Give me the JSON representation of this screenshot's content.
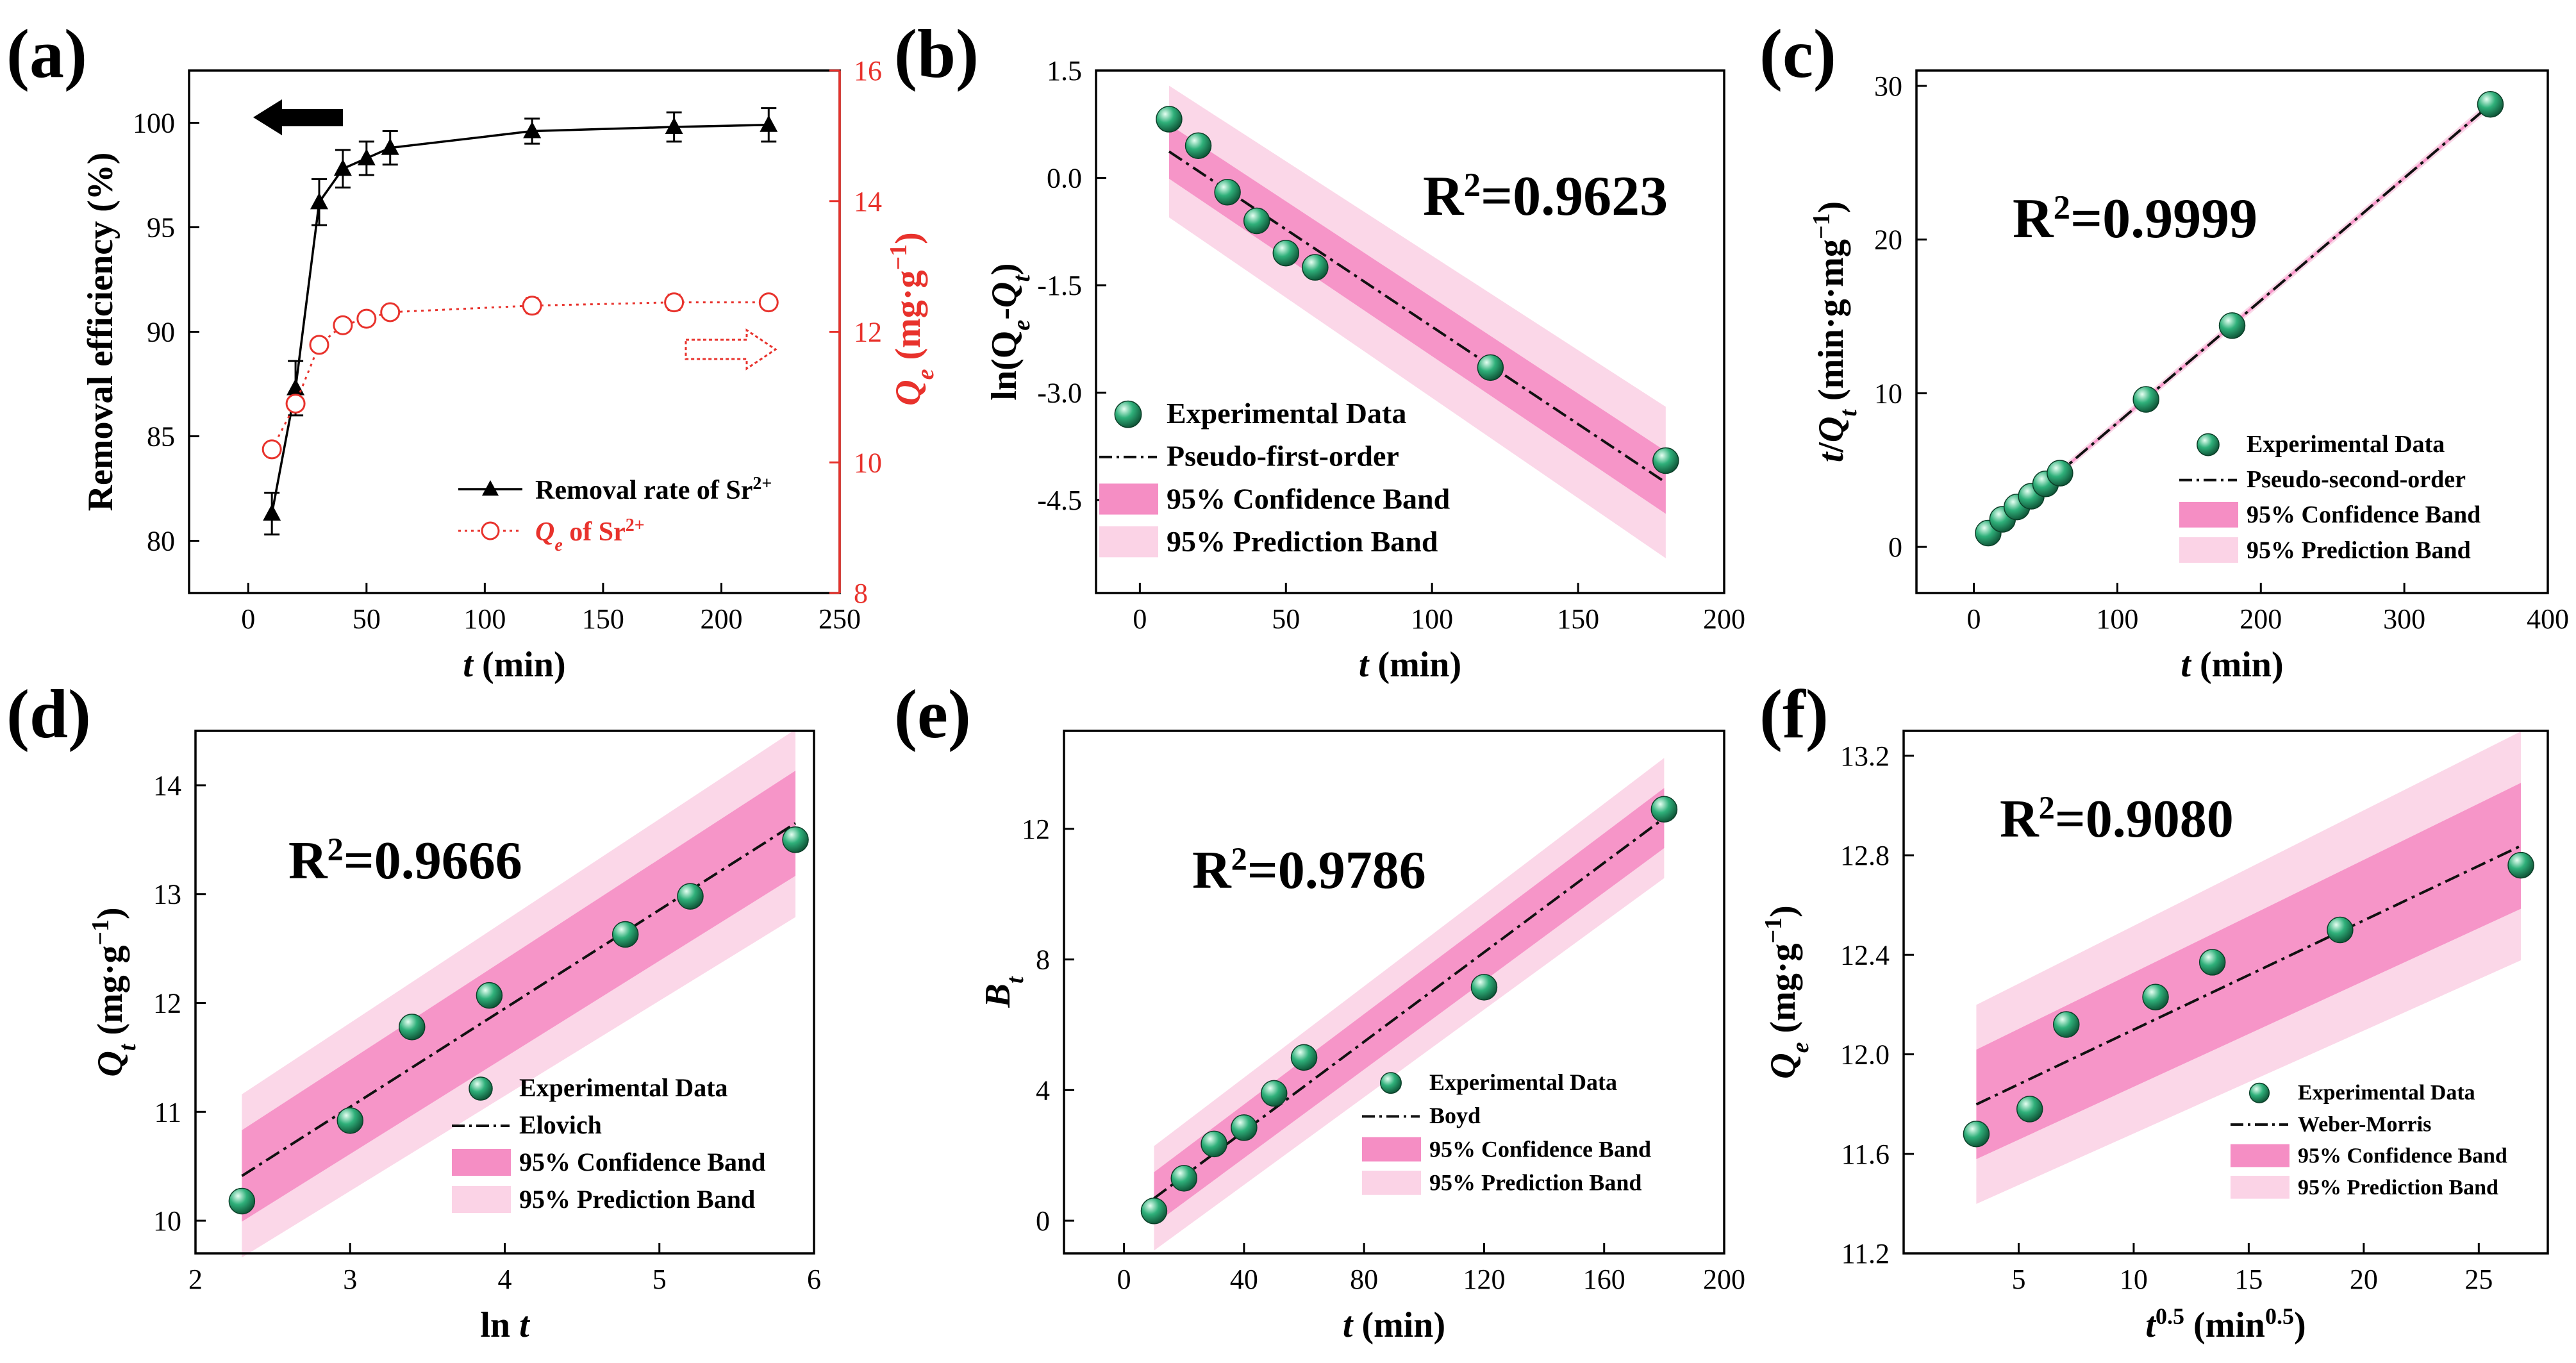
{
  "chart_data": [
    {
      "id": "a",
      "panel_label": "(a)",
      "type": "line",
      "xlabel_main": "t",
      "xlabel_unit": " (min)",
      "ylabel": "Removal efficiency (%)",
      "y2label_main": "Q",
      "y2label_sub": "e",
      "y2label_unit": " (mg·g",
      "y2label_sup": "−1",
      "y2label_close": ")",
      "xlim": [
        -25,
        250
      ],
      "xticks": [
        0,
        50,
        100,
        150,
        200,
        250
      ],
      "ylim": [
        77.5,
        102.5
      ],
      "yticks": [
        80,
        85,
        90,
        95,
        100
      ],
      "y2lim": [
        8,
        16
      ],
      "y2ticks": [
        8,
        10,
        12,
        14,
        16
      ],
      "series": [
        {
          "name": "Removal rate of Sr2+",
          "axis": "left",
          "color": "#000000",
          "x": [
            10,
            20,
            30,
            40,
            50,
            60,
            120,
            180,
            220
          ],
          "y": [
            81.3,
            87.3,
            96.2,
            97.8,
            98.3,
            98.8,
            99.6,
            99.8,
            99.9
          ],
          "err": [
            1.0,
            1.3,
            1.1,
            0.9,
            0.8,
            0.8,
            0.6,
            0.7,
            0.8
          ]
        },
        {
          "name": "Qe of Sr2+",
          "axis": "right",
          "color": "#e8322c",
          "x": [
            10,
            20,
            30,
            40,
            50,
            60,
            120,
            180,
            220
          ],
          "y": [
            10.2,
            10.9,
            11.8,
            12.1,
            12.2,
            12.3,
            12.4,
            12.45,
            12.45
          ],
          "err": [
            0.08,
            0.1,
            0.1,
            0.1,
            0.08,
            0.08,
            0.12,
            0.12,
            0.1
          ]
        }
      ],
      "legend": [
        {
          "text": "Removal rate of Sr",
          "sup": "2+"
        },
        {
          "text_italic": "Q",
          "sub": "e",
          "text": " of Sr",
          "sup": "2+"
        }
      ]
    },
    {
      "id": "b",
      "panel_label": "(b)",
      "type": "scatter",
      "xlabel_main": "t",
      "xlabel_unit": " (min)",
      "ylabel_text": "ln(Q",
      "xlim": [
        -15,
        200
      ],
      "xticks": [
        0,
        50,
        100,
        150,
        200
      ],
      "ylim": [
        -5.8,
        1.5
      ],
      "yticks": [
        1.5,
        0.0,
        -1.5,
        -3.0,
        -4.5
      ],
      "ytick_labels": [
        "1.5",
        "0.0",
        "-1.5",
        "-3.0",
        "-4.5"
      ],
      "points": {
        "x": [
          10,
          20,
          30,
          40,
          50,
          60,
          120,
          180
        ],
        "y": [
          0.82,
          0.45,
          -0.2,
          -0.6,
          -1.05,
          -1.25,
          -2.65,
          -3.95
        ]
      },
      "fit": {
        "slope": -0.0272,
        "intercept": 0.64,
        "conf": 0.38,
        "pred": 0.92,
        "x0": 10,
        "x1": 180
      },
      "r2_label": "R",
      "r2_value": "=0.9623",
      "legend": [
        "Experimental Data",
        "Pseudo-first-order",
        "95% Confidence Band",
        "95% Prediction Band"
      ]
    },
    {
      "id": "c",
      "panel_label": "(c)",
      "type": "scatter",
      "xlabel_main": "t",
      "xlabel_unit": " (min)",
      "xlim": [
        -40,
        400
      ],
      "xticks": [
        0,
        100,
        200,
        300,
        400
      ],
      "ylim": [
        -3,
        31
      ],
      "yticks": [
        0,
        10,
        20,
        30
      ],
      "points": {
        "x": [
          10,
          20,
          30,
          40,
          50,
          60,
          120,
          180,
          360
        ],
        "y": [
          0.9,
          1.8,
          2.6,
          3.3,
          4.1,
          4.8,
          9.6,
          14.4,
          28.8
        ]
      },
      "fit": {
        "slope": 0.0797,
        "intercept": 0.1,
        "conf": 0.1,
        "pred": 0.25,
        "x0": 10,
        "x1": 360
      },
      "r2_label": "R",
      "r2_value": "=0.9999",
      "legend": [
        "Experimental Data",
        "Pseudo-second-order",
        "95% Confidence Band",
        "95% Prediction Band"
      ]
    },
    {
      "id": "d",
      "panel_label": "(d)",
      "type": "scatter",
      "xlabel_main": "ln ",
      "xlabel_it": "t",
      "xlim": [
        2,
        6
      ],
      "xticks": [
        2,
        3,
        4,
        5,
        6
      ],
      "ylim": [
        9.7,
        14.5
      ],
      "yticks": [
        10,
        11,
        12,
        13,
        14
      ],
      "points": {
        "x": [
          2.3,
          3.0,
          3.4,
          3.9,
          4.78,
          5.2,
          5.88
        ],
        "y": [
          10.18,
          10.92,
          11.78,
          12.07,
          12.63,
          12.98,
          13.5
        ]
      },
      "fit": {
        "slope": 0.905,
        "intercept": 8.33,
        "conf": 0.42,
        "pred": 0.75,
        "x0": 2.3,
        "x1": 5.88
      },
      "r2_label": "R",
      "r2_value": "=0.9666",
      "legend": [
        "Experimental Data",
        "Elovich",
        "95% Confidence Band",
        "95% Prediction Band"
      ]
    },
    {
      "id": "e",
      "panel_label": "(e)",
      "type": "scatter",
      "xlabel_main": "t",
      "xlabel_unit": " (min)",
      "xlim": [
        -20,
        200
      ],
      "xticks": [
        0,
        40,
        80,
        120,
        160,
        200
      ],
      "ylim": [
        -1,
        15
      ],
      "yticks": [
        0,
        4,
        8,
        12
      ],
      "points": {
        "x": [
          10,
          20,
          30,
          40,
          50,
          60,
          120,
          180
        ],
        "y": [
          0.3,
          1.3,
          2.35,
          2.85,
          3.9,
          5.0,
          7.15,
          12.6
        ]
      },
      "fit": {
        "slope": 0.0685,
        "intercept": 0.0,
        "conf": 0.8,
        "pred": 1.6,
        "x0": 10,
        "x1": 180
      },
      "r2_label": "R",
      "r2_value": "=0.9786",
      "legend": [
        "Experimental Data",
        "Boyd",
        "95% Confidence Band",
        "95% Prediction Band"
      ]
    },
    {
      "id": "f",
      "panel_label": "(f)",
      "type": "scatter",
      "xlabel_main": "t",
      "xlabel_sup": "0.5",
      "xlabel_unit": " (min",
      "xlabel_unit_sup": "0.5",
      "xlabel_close": ")",
      "xlim": [
        0,
        28
      ],
      "xticks": [
        5,
        10,
        15,
        20,
        25
      ],
      "ylim": [
        11.2,
        13.3
      ],
      "yticks": [
        11.2,
        11.6,
        12.0,
        12.4,
        12.8,
        13.2
      ],
      "ytick_labels": [
        "11.2",
        "11.6",
        "12.0",
        "12.4",
        "12.8",
        "13.2"
      ],
      "points": {
        "x": [
          3.16,
          5.48,
          7.07,
          10.95,
          13.42,
          18.97,
          26.83
        ],
        "y": [
          11.68,
          11.78,
          12.12,
          12.23,
          12.37,
          12.5,
          12.76
        ]
      },
      "fit": {
        "slope": 0.0439,
        "intercept": 11.66,
        "conf": 0.22,
        "pred": 0.4,
        "x0": 3.16,
        "x1": 26.83
      },
      "r2_label": "R",
      "r2_value": "=0.9080",
      "legend": [
        "Experimental Data",
        "Weber-Morris",
        "95% Confidence Band",
        "95% Prediction Band"
      ]
    }
  ]
}
